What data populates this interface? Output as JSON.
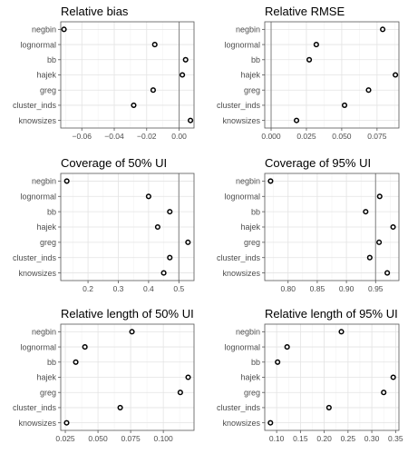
{
  "style": {
    "grid_major": "#e3e3e3",
    "grid_minor": "#f2f2f2",
    "panel_border": "#555555",
    "ref_line": "#8a8a8a",
    "point_stroke": "#000000",
    "text": "#4d4d4d"
  },
  "chart_data": [
    {
      "type": "scatter",
      "title": "Relative bias",
      "categories": [
        "negbin",
        "lognormal",
        "bb",
        "hajek",
        "greg",
        "cluster_inds",
        "knowsizes"
      ],
      "values": [
        -0.071,
        -0.015,
        0.004,
        0.002,
        -0.016,
        -0.028,
        0.007
      ],
      "xlim": [
        -0.073,
        0.0092
      ],
      "xticks": [
        -0.06,
        -0.04,
        -0.02,
        0.0
      ],
      "xtick_labels": [
        "−0.06",
        "−0.04",
        "−0.02",
        "0.00"
      ],
      "ref_line": 0,
      "grid": true
    },
    {
      "type": "scatter",
      "title": "Relative RMSE",
      "categories": [
        "negbin",
        "lognormal",
        "bb",
        "hajek",
        "greg",
        "cluster_inds",
        "knowsizes"
      ],
      "values": [
        0.079,
        0.032,
        0.027,
        0.088,
        0.069,
        0.052,
        0.018
      ],
      "xlim": [
        -0.0045,
        0.0905
      ],
      "xticks": [
        0.0,
        0.025,
        0.05,
        0.075
      ],
      "xtick_labels": [
        "0.000",
        "0.025",
        "0.050",
        "0.075"
      ],
      "ref_line": 0,
      "grid": true
    },
    {
      "type": "scatter",
      "title": "Coverage of 50% UI",
      "categories": [
        "negbin",
        "lognormal",
        "bb",
        "hajek",
        "greg",
        "cluster_inds",
        "knowsizes"
      ],
      "values": [
        0.13,
        0.4,
        0.47,
        0.43,
        0.53,
        0.47,
        0.45
      ],
      "xlim": [
        0.11,
        0.55
      ],
      "xticks": [
        0.2,
        0.3,
        0.4,
        0.5
      ],
      "xtick_labels": [
        "0.2",
        "0.3",
        "0.4",
        "0.5"
      ],
      "ref_line": 0.5,
      "grid": true
    },
    {
      "type": "scatter",
      "title": "Coverage of 95% UI",
      "categories": [
        "negbin",
        "lognormal",
        "bb",
        "hajek",
        "greg",
        "cluster_inds",
        "knowsizes"
      ],
      "values": [
        0.77,
        0.957,
        0.933,
        0.98,
        0.956,
        0.94,
        0.97
      ],
      "xlim": [
        0.76,
        0.99
      ],
      "xticks": [
        0.8,
        0.85,
        0.9,
        0.95
      ],
      "xtick_labels": [
        "0.80",
        "0.85",
        "0.90",
        "0.95"
      ],
      "ref_line": 0.95,
      "grid": true
    },
    {
      "type": "scatter",
      "title": "Relative length of 50% UI",
      "categories": [
        "negbin",
        "lognormal",
        "bb",
        "hajek",
        "greg",
        "cluster_inds",
        "knowsizes"
      ],
      "values": [
        0.076,
        0.04,
        0.033,
        0.119,
        0.113,
        0.067,
        0.026
      ],
      "xlim": [
        0.0215,
        0.1235
      ],
      "xticks": [
        0.025,
        0.05,
        0.075,
        0.1
      ],
      "xtick_labels": [
        "0.025",
        "0.050",
        "0.075",
        "0.100"
      ],
      "ref_line": null,
      "grid": true
    },
    {
      "type": "scatter",
      "title": "Relative length of 95% UI",
      "categories": [
        "negbin",
        "lognormal",
        "bb",
        "hajek",
        "greg",
        "cluster_inds",
        "knowsizes"
      ],
      "values": [
        0.236,
        0.122,
        0.102,
        0.345,
        0.325,
        0.21,
        0.087
      ],
      "xlim": [
        0.075,
        0.357
      ],
      "xticks": [
        0.1,
        0.15,
        0.2,
        0.25,
        0.3,
        0.35
      ],
      "xtick_labels": [
        "0.10",
        "0.15",
        "0.20",
        "0.25",
        "0.30",
        "0.35"
      ],
      "ref_line": null,
      "grid": true
    }
  ]
}
